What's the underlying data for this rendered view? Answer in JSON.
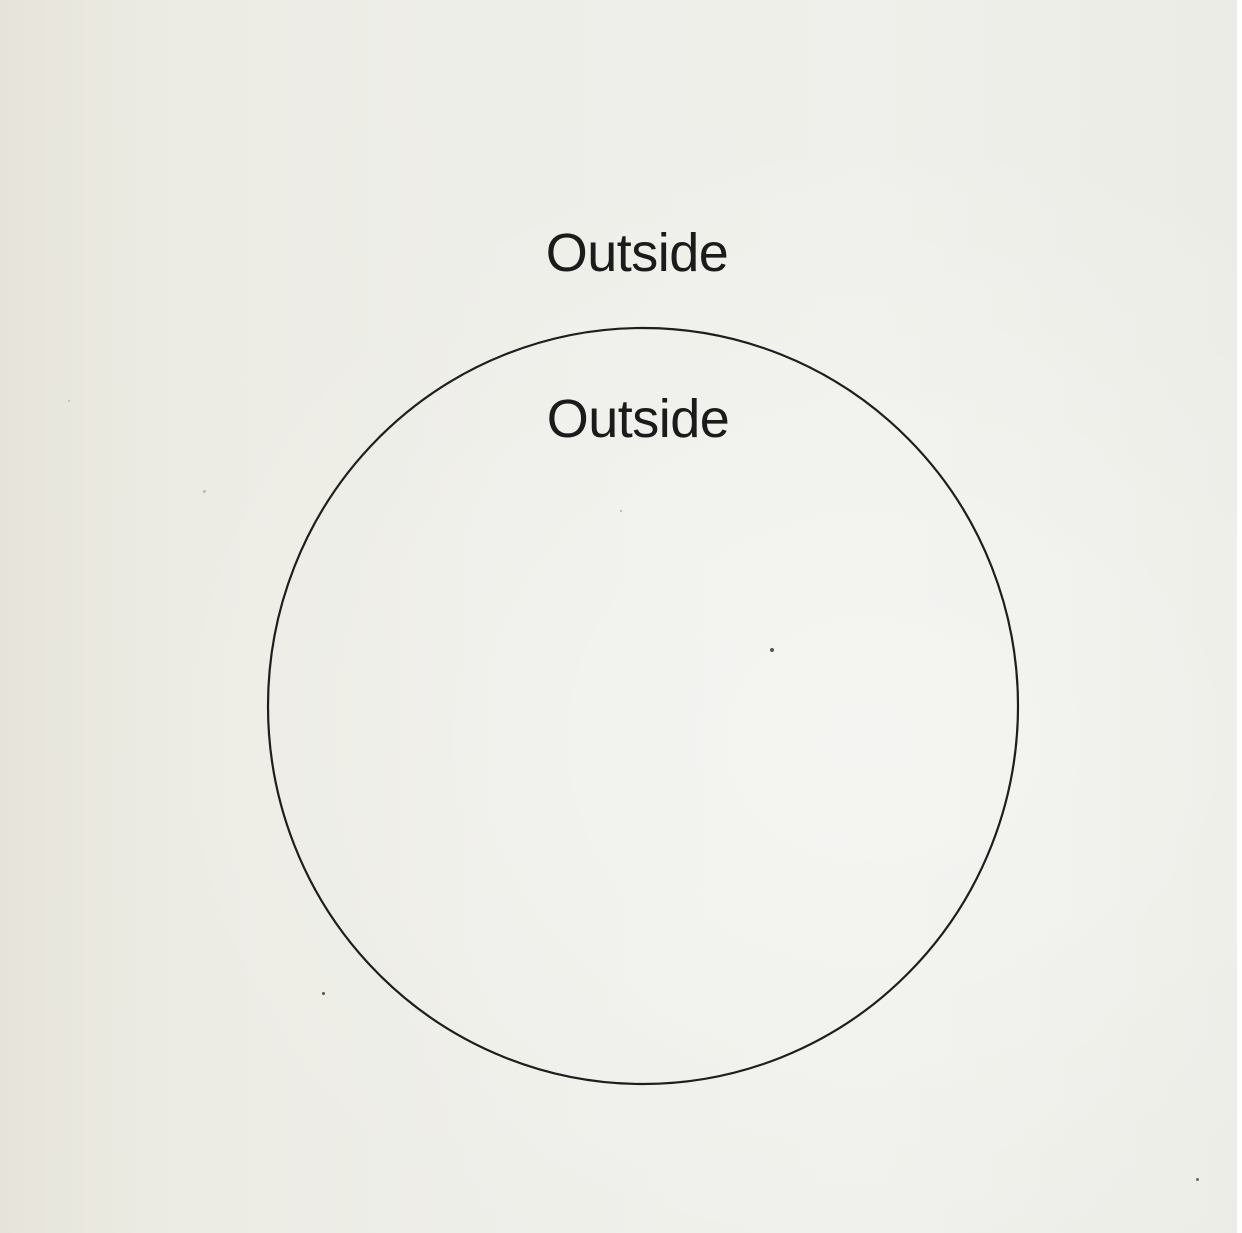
{
  "labels": {
    "outer": "Outside",
    "inner": "Outside"
  },
  "colors": {
    "paper": "#eeeee9",
    "ink": "#1b1b1b"
  }
}
